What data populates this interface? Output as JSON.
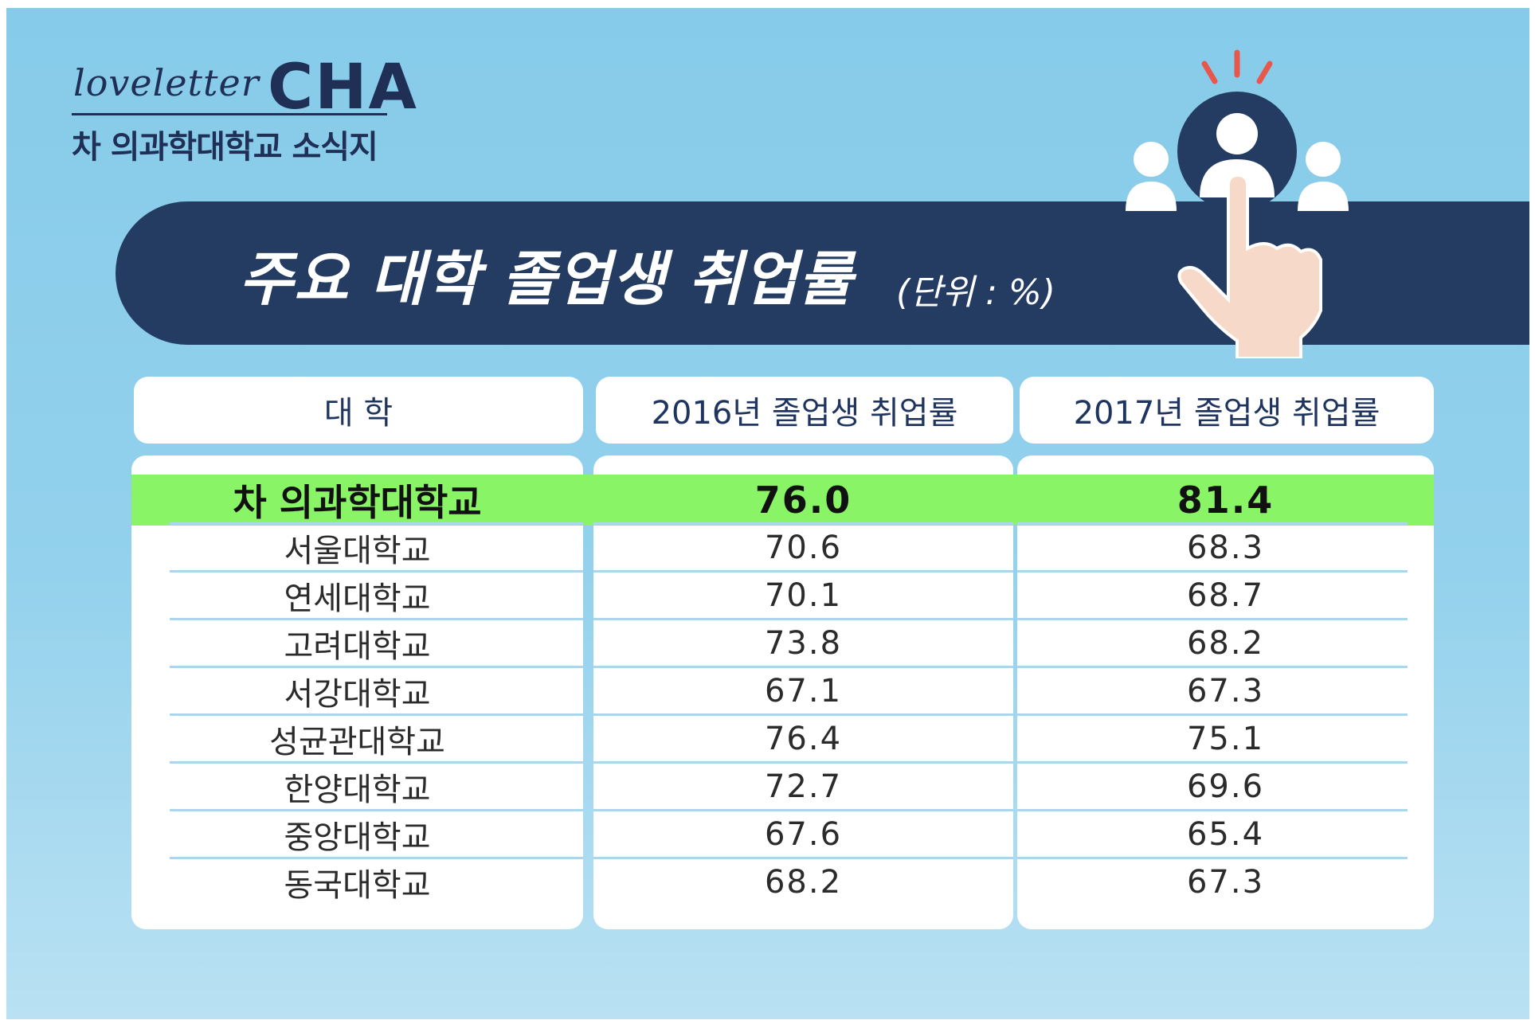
{
  "logo": {
    "script": "loveletter",
    "brand": "CHA",
    "subtitle": "차 의과학대학교 소식지"
  },
  "banner": {
    "title": "주요 대학 졸업생 취업률",
    "unit": "(단위 : %)"
  },
  "colors": {
    "banner": "#243b62",
    "highlight": "#89f465",
    "text": "#1f3560"
  },
  "icons": [
    "people-group-icon",
    "pointing-hand-icon"
  ],
  "chart_data": {
    "type": "table",
    "title": "주요 대학 졸업생 취업률",
    "unit": "(단위 : %)",
    "columns": [
      "대  학",
      "2016년 졸업생 취업률",
      "2017년 졸업생 취업률"
    ],
    "rows": [
      {
        "university": "차 의과학대학교",
        "y2016": "76.0",
        "y2017": "81.4",
        "highlight": true
      },
      {
        "university": "서울대학교",
        "y2016": "70.6",
        "y2017": "68.3"
      },
      {
        "university": "연세대학교",
        "y2016": "70.1",
        "y2017": "68.7"
      },
      {
        "university": "고려대학교",
        "y2016": "73.8",
        "y2017": "68.2"
      },
      {
        "university": "서강대학교",
        "y2016": "67.1",
        "y2017": "67.3"
      },
      {
        "university": "성균관대학교",
        "y2016": "76.4",
        "y2017": "75.1"
      },
      {
        "university": "한양대학교",
        "y2016": "72.7",
        "y2017": "69.6"
      },
      {
        "university": "중앙대학교",
        "y2016": "67.6",
        "y2017": "65.4"
      },
      {
        "university": "동국대학교",
        "y2016": "68.2",
        "y2017": "67.3"
      }
    ]
  }
}
